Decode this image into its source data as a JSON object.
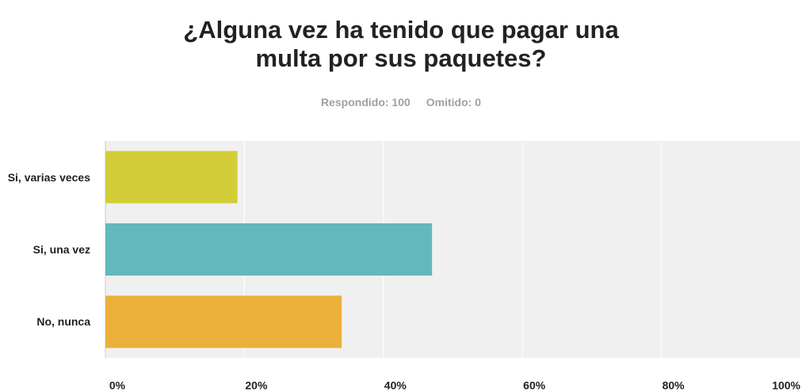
{
  "chart_data": {
    "type": "bar",
    "orientation": "horizontal",
    "title": "¿Alguna vez ha tenido que pagar una multa por sus paquetes?",
    "subtitle": [
      "Respondido: 100",
      "Omitido: 0"
    ],
    "categories": [
      "Si, varias veces",
      "Si, una vez",
      "No, nunca"
    ],
    "values": [
      19,
      47,
      34
    ],
    "colors": [
      "#d3cd3a",
      "#63b8bb",
      "#ecaf3a"
    ],
    "xlim": [
      0,
      100
    ],
    "xticks": [
      {
        "value": 0,
        "label": "0%"
      },
      {
        "value": 20,
        "label": "20%"
      },
      {
        "value": 40,
        "label": "40%"
      },
      {
        "value": 60,
        "label": "60%"
      },
      {
        "value": 80,
        "label": "80%"
      },
      {
        "value": 100,
        "label": "100%"
      }
    ],
    "grid": true
  }
}
